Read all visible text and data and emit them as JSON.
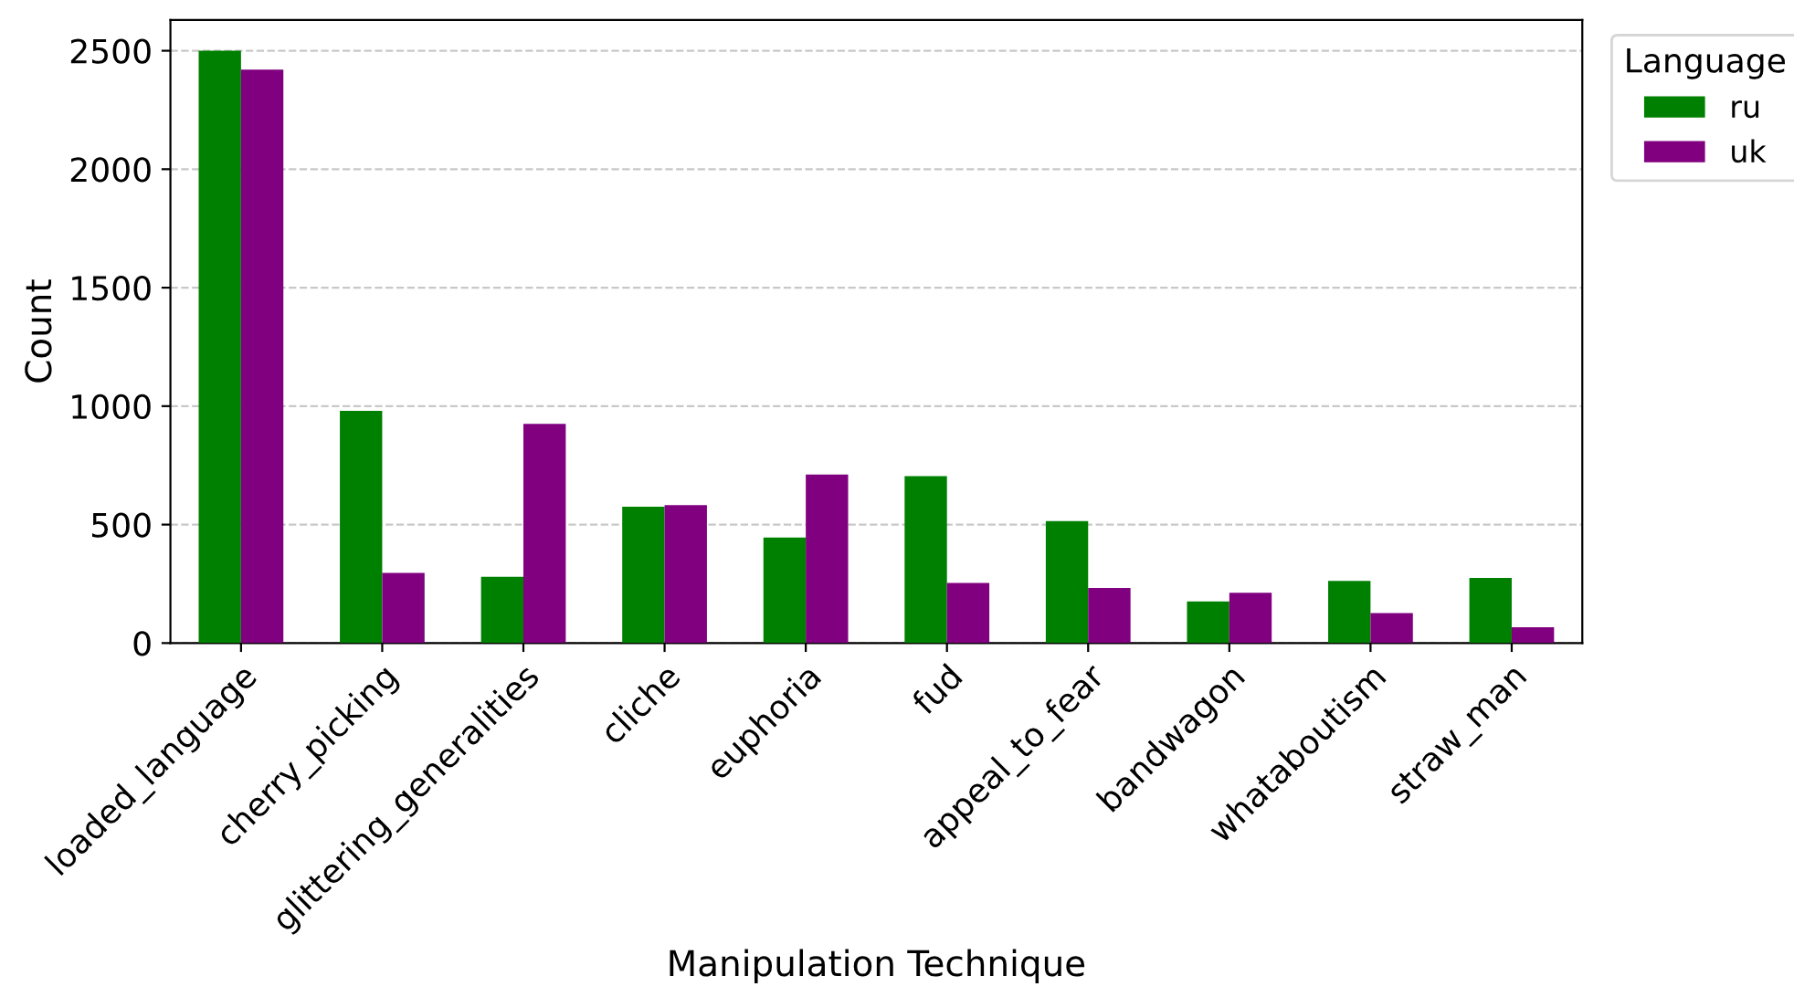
{
  "chart_data": {
    "type": "bar",
    "xlabel": "Manipulation Technique",
    "ylabel": "Count",
    "legend_title": "Language",
    "categories": [
      "loaded_language",
      "cherry_picking",
      "glittering_generalities",
      "cliche",
      "euphoria",
      "fud",
      "appeal_to_fear",
      "bandwagon",
      "whataboutism",
      "straw_man"
    ],
    "series": [
      {
        "name": "ru",
        "color": "#008000",
        "values": [
          2500,
          980,
          280,
          575,
          445,
          705,
          515,
          176,
          262,
          275
        ]
      },
      {
        "name": "uk",
        "color": "#800080",
        "values": [
          2420,
          296,
          925,
          582,
          711,
          254,
          233,
          212,
          127,
          67
        ]
      }
    ],
    "ylim": [
      0,
      2630
    ],
    "yticks": [
      0,
      500,
      1000,
      1500,
      2000,
      2500
    ],
    "grid": "y",
    "legend": "top right"
  }
}
